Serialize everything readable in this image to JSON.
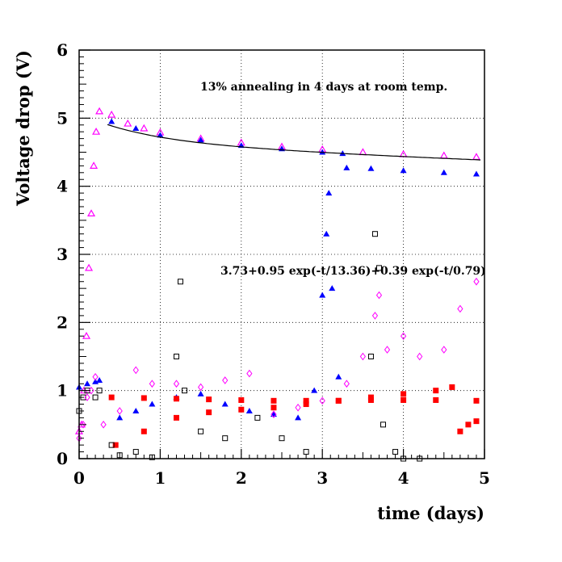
{
  "chart_data": {
    "type": "scatter",
    "title": "",
    "xlabel": "time (days)",
    "ylabel": "Voltage drop (V)",
    "xlim": [
      0,
      5
    ],
    "ylim": [
      0,
      6
    ],
    "grid": true,
    "x_ticks": [
      "0",
      "1",
      "2",
      "3",
      "4",
      "5"
    ],
    "y_ticks": [
      "0",
      "1",
      "2",
      "3",
      "4",
      "5",
      "6"
    ],
    "annotations": {
      "annealing": "13% annealing in 4 days at room temp.",
      "fit": "3.73+0.95 exp(-t/13.36)+0.39 exp(-t/0.79)"
    },
    "fit_curve": {
      "a": 3.73,
      "b": 0.95,
      "tau1": 13.36,
      "c": 0.39,
      "tau2": 0.79,
      "t_start": 0.35,
      "t_end": 4.95,
      "color": "#000000"
    },
    "series": [
      {
        "marker": "open-triangle",
        "color": "#ff00ff",
        "points": [
          [
            0.0,
            0.4
          ],
          [
            0.03,
            0.5
          ],
          [
            0.06,
            1.0
          ],
          [
            0.09,
            1.8
          ],
          [
            0.12,
            2.8
          ],
          [
            0.15,
            3.6
          ],
          [
            0.18,
            4.3
          ],
          [
            0.21,
            4.8
          ],
          [
            0.25,
            5.1
          ],
          [
            0.4,
            5.05
          ],
          [
            0.6,
            4.92
          ],
          [
            0.8,
            4.85
          ],
          [
            1.0,
            4.79
          ],
          [
            1.5,
            4.7
          ],
          [
            2.0,
            4.64
          ],
          [
            2.5,
            4.58
          ],
          [
            3.0,
            4.54
          ],
          [
            3.5,
            4.5
          ],
          [
            4.0,
            4.47
          ],
          [
            4.5,
            4.45
          ],
          [
            4.9,
            4.43
          ]
        ]
      },
      {
        "marker": "filled-triangle",
        "color": "#0000ff",
        "points": [
          [
            0.0,
            1.05
          ],
          [
            0.1,
            1.1
          ],
          [
            0.2,
            1.13
          ],
          [
            0.25,
            1.15
          ],
          [
            0.5,
            0.6
          ],
          [
            0.7,
            0.7
          ],
          [
            0.9,
            0.8
          ],
          [
            1.2,
            0.9
          ],
          [
            1.5,
            0.95
          ],
          [
            1.8,
            0.8
          ],
          [
            2.1,
            0.7
          ],
          [
            2.4,
            0.65
          ],
          [
            2.7,
            0.6
          ],
          [
            2.9,
            1.0
          ],
          [
            3.0,
            2.4
          ],
          [
            3.05,
            3.3
          ],
          [
            3.08,
            3.9
          ],
          [
            3.12,
            2.5
          ],
          [
            3.2,
            1.2
          ],
          [
            0.4,
            4.95
          ],
          [
            0.7,
            4.85
          ],
          [
            1.0,
            4.75
          ],
          [
            1.5,
            4.68
          ],
          [
            2.0,
            4.6
          ],
          [
            2.5,
            4.55
          ],
          [
            3.0,
            4.5
          ],
          [
            3.25,
            4.48
          ],
          [
            3.3,
            4.27
          ],
          [
            3.6,
            4.26
          ],
          [
            4.0,
            4.23
          ],
          [
            4.5,
            4.2
          ],
          [
            4.9,
            4.18
          ]
        ]
      },
      {
        "marker": "filled-square",
        "color": "#ff0000",
        "points": [
          [
            0.4,
            0.9
          ],
          [
            0.8,
            0.89
          ],
          [
            1.2,
            0.88
          ],
          [
            1.6,
            0.87
          ],
          [
            2.0,
            0.86
          ],
          [
            2.4,
            0.85
          ],
          [
            2.8,
            0.85
          ],
          [
            3.2,
            0.85
          ],
          [
            3.6,
            0.86
          ],
          [
            4.0,
            0.86
          ],
          [
            4.4,
            0.86
          ],
          [
            4.9,
            0.85
          ],
          [
            0.45,
            0.2
          ],
          [
            0.8,
            0.4
          ],
          [
            1.2,
            0.6
          ],
          [
            1.6,
            0.68
          ],
          [
            2.0,
            0.72
          ],
          [
            2.4,
            0.75
          ],
          [
            2.8,
            0.8
          ],
          [
            3.2,
            0.85
          ],
          [
            3.6,
            0.9
          ],
          [
            4.0,
            0.95
          ],
          [
            4.4,
            1.0
          ],
          [
            4.6,
            1.05
          ],
          [
            4.7,
            0.4
          ],
          [
            4.8,
            0.5
          ],
          [
            4.9,
            0.55
          ]
        ]
      },
      {
        "marker": "open-square",
        "color": "#000000",
        "points": [
          [
            0.0,
            0.7
          ],
          [
            0.05,
            0.9
          ],
          [
            0.1,
            1.0
          ],
          [
            0.2,
            0.9
          ],
          [
            0.25,
            1.0
          ],
          [
            0.4,
            0.2
          ],
          [
            0.5,
            0.05
          ],
          [
            0.7,
            0.1
          ],
          [
            0.9,
            0.02
          ],
          [
            1.2,
            1.5
          ],
          [
            1.25,
            2.6
          ],
          [
            1.3,
            1.0
          ],
          [
            1.5,
            0.4
          ],
          [
            1.8,
            0.3
          ],
          [
            2.2,
            0.6
          ],
          [
            2.5,
            0.3
          ],
          [
            2.8,
            0.1
          ],
          [
            3.6,
            1.5
          ],
          [
            3.65,
            3.3
          ],
          [
            3.7,
            2.8
          ],
          [
            3.75,
            0.5
          ],
          [
            3.9,
            0.1
          ],
          [
            4.0,
            0.0
          ],
          [
            4.2,
            0.0
          ]
        ]
      },
      {
        "marker": "open-diamond",
        "color": "#ff00ff",
        "points": [
          [
            0.0,
            0.3
          ],
          [
            0.05,
            0.5
          ],
          [
            0.1,
            0.9
          ],
          [
            0.15,
            1.0
          ],
          [
            0.2,
            1.2
          ],
          [
            0.3,
            0.5
          ],
          [
            0.5,
            0.7
          ],
          [
            0.7,
            1.3
          ],
          [
            0.9,
            1.1
          ],
          [
            1.2,
            1.1
          ],
          [
            1.5,
            1.05
          ],
          [
            1.8,
            1.15
          ],
          [
            2.1,
            1.25
          ],
          [
            2.4,
            0.65
          ],
          [
            2.7,
            0.75
          ],
          [
            3.0,
            0.85
          ],
          [
            3.3,
            1.1
          ],
          [
            3.5,
            1.5
          ],
          [
            3.65,
            2.1
          ],
          [
            3.7,
            2.4
          ],
          [
            3.8,
            1.6
          ],
          [
            4.0,
            1.8
          ],
          [
            4.2,
            1.5
          ],
          [
            4.5,
            1.6
          ],
          [
            4.7,
            2.2
          ],
          [
            4.9,
            2.6
          ]
        ]
      }
    ]
  }
}
